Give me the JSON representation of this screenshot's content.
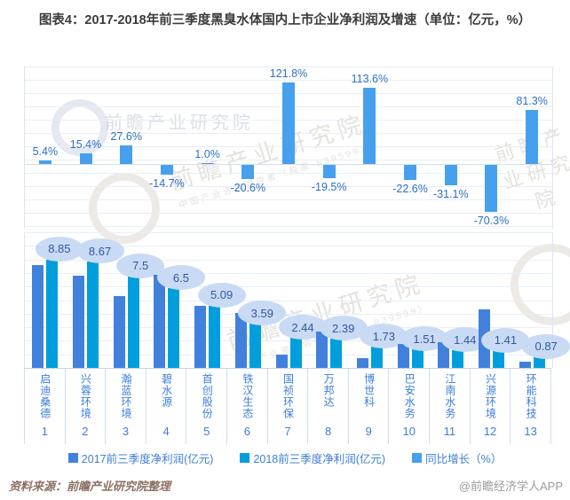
{
  "title": "图表4：2017-2018年前三季度黑臭水体国内上市企业净利润及增速（单位：亿元，%）",
  "source_label": "资料来源：前瞻产业研究院整理",
  "credit_label": "@前瞻经济学人APP",
  "watermark": {
    "brand": "前瞻产业研究院",
    "slogan": "中国产业咨询领导者（股票·839599）"
  },
  "legend": [
    {
      "label": "2017前三季度净利润(亿元)",
      "color": "#4181dc"
    },
    {
      "label": "2018前三季度净利润(亿元)",
      "color": "#009edd"
    },
    {
      "label": "同比增长（%）",
      "color": "#47a0ee"
    }
  ],
  "colors": {
    "bar_2017": "#4181dc",
    "bar_2018": "#009edd",
    "bar_growth": "#47a0ee",
    "axis_text": "#3b7ddd",
    "growth_label_text": "#2e6fc4",
    "bubble_fill": "#c9daf5",
    "bubble_text": "#33589e"
  },
  "chart_data": {
    "type": "bar",
    "title": "2017-2018年前三季度黑臭水体国内上市企业净利润及增速",
    "units": "亿元，%",
    "categories": [
      "启迪桑德",
      "兴蓉环境",
      "瀚蓝环境",
      "碧水源",
      "首创股份",
      "铁汉生态",
      "国祯环保",
      "万邦达",
      "博世科",
      "巴安水务",
      "江南水务",
      "兴源环境",
      "环能科技"
    ],
    "index_labels": [
      "1",
      "2",
      "3",
      "4",
      "5",
      "6",
      "7",
      "8",
      "9",
      "10",
      "11",
      "12",
      "13"
    ],
    "series": [
      {
        "name": "2017前三季度净利润(亿元)",
        "values": [
          8.4,
          7.51,
          5.88,
          7.62,
          5.04,
          4.52,
          1.1,
          2.97,
          0.81,
          1.95,
          2.09,
          4.75,
          0.48
        ],
        "note": "estimated from bar heights (not labeled in figure)"
      },
      {
        "name": "2018前三季度净利润(亿元)",
        "values": [
          8.85,
          8.67,
          7.5,
          6.5,
          5.09,
          3.59,
          2.44,
          2.39,
          1.73,
          1.51,
          1.44,
          1.41,
          0.87
        ]
      },
      {
        "name": "同比增长（%）",
        "values": [
          5.4,
          15.4,
          27.6,
          -14.7,
          1.0,
          -20.6,
          121.8,
          -19.5,
          113.6,
          -22.6,
          -31.1,
          -70.3,
          81.3
        ]
      }
    ],
    "value_labels_2018": [
      "8.85",
      "8.67",
      "7.5",
      "6.5",
      "5.09",
      "3.59",
      "2.44",
      "2.39",
      "1.73",
      "1.51",
      "1.44",
      "1.41",
      "0.87"
    ],
    "growth_labels": [
      "5.4%",
      "15.4%",
      "27.6%",
      "-14.7%",
      "1.0%",
      "-20.6%",
      "121.8%",
      "-19.5%",
      "113.6%",
      "-22.6%",
      "-31.1%",
      "-70.3%",
      "81.3%"
    ],
    "layout": {
      "panels": "growth bars on top panel, paired profit bars on bottom panel",
      "growth_axis": {
        "approx_range_pct": [
          -100,
          145
        ],
        "gridline_interval_pct": 20,
        "grid": true
      },
      "profit_axis": {
        "approx_range": [
          0,
          10
        ],
        "grid": true
      },
      "legend_position": "bottom-center"
    }
  }
}
